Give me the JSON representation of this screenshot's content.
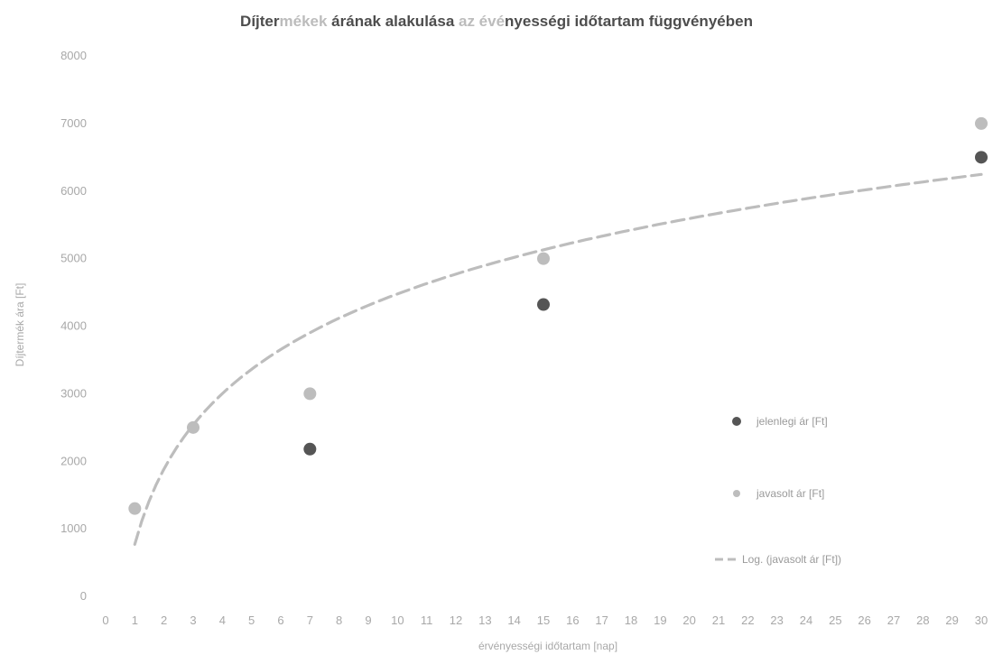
{
  "chart_data": {
    "type": "scatter",
    "title": "Díjtermékek árának alakulása az évényességi időtartam függvényében",
    "title_segments": [
      {
        "text": "Díjter",
        "highlight": false
      },
      {
        "text": "mékek",
        "highlight": true
      },
      {
        "text": " árának alakulása ",
        "highlight": false
      },
      {
        "text": "az évé",
        "highlight": true
      },
      {
        "text": "nyességi időtartam függvényében",
        "highlight": false
      }
    ],
    "xlabel": "érvényességi időtartam [nap]",
    "ylabel": "Díjtermék ára [Ft]",
    "xlim": [
      0,
      30
    ],
    "ylim": [
      0,
      8000
    ],
    "x_ticks": [
      0,
      1,
      2,
      3,
      4,
      5,
      6,
      7,
      8,
      9,
      10,
      11,
      12,
      13,
      14,
      15,
      16,
      17,
      18,
      19,
      20,
      21,
      22,
      23,
      24,
      25,
      26,
      27,
      28,
      29,
      30
    ],
    "y_ticks": [
      0,
      1000,
      2000,
      3000,
      4000,
      5000,
      6000,
      7000,
      8000
    ],
    "grid": false,
    "legend_position": "right",
    "series": [
      {
        "name": "jelenlegi ár [Ft]",
        "color": "#555555",
        "points": [
          {
            "x": 7,
            "y": 2180
          },
          {
            "x": 15,
            "y": 4320
          },
          {
            "x": 30,
            "y": 6500
          }
        ]
      },
      {
        "name": "javasolt ár [Ft]",
        "color": "#bdbdbd",
        "points": [
          {
            "x": 1,
            "y": 1300
          },
          {
            "x": 3,
            "y": 2500
          },
          {
            "x": 7,
            "y": 3000
          },
          {
            "x": 15,
            "y": 5000
          },
          {
            "x": 30,
            "y": 7000
          }
        ]
      }
    ],
    "trendline": {
      "name": "Log. (javasolt ár [Ft])",
      "type": "logarithmic",
      "of_series": "javasolt ár [Ft]",
      "color": "#bdbdbd",
      "dash": true,
      "x_range": [
        1,
        30
      ],
      "coefficients": {
        "a": 1610,
        "b": 770
      }
    }
  }
}
